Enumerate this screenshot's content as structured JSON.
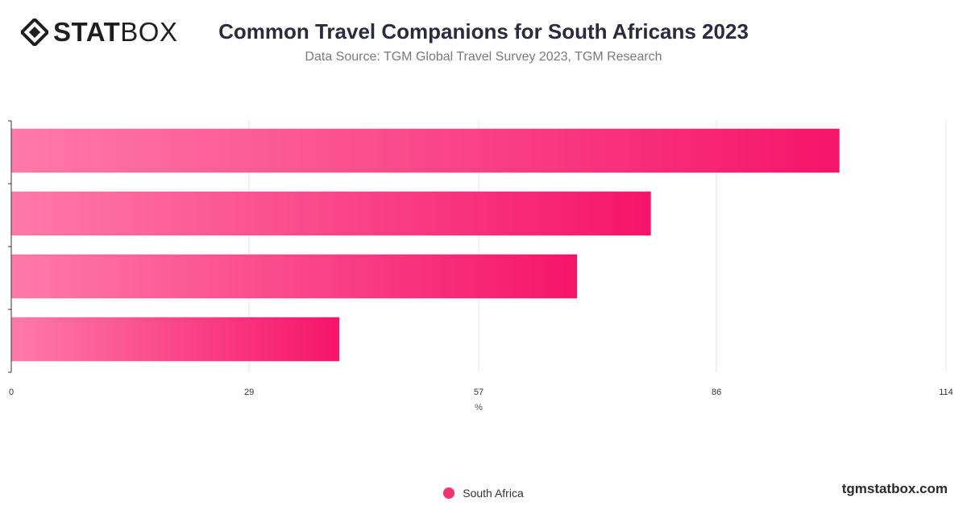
{
  "logo": {
    "text_bold": "STAT",
    "text_light": "BOX"
  },
  "header": {
    "title": "Common Travel Companions for South Africans 2023",
    "subtitle": "Data Source: TGM Global Travel Survey 2023, TGM Research"
  },
  "footer": {
    "site": "tgmstatbox.com"
  },
  "colors": {
    "bar_start": "#ff7aa8",
    "bar_end": "#f5156a",
    "grid": "#e3e3e3",
    "axis": "#333333",
    "legend_dot": "#f0346f"
  },
  "chart_data": {
    "type": "bar",
    "orientation": "horizontal",
    "title": "Common Travel Companions for South Africans 2023",
    "xlabel": "%",
    "xlim": [
      0,
      114
    ],
    "x_ticks": [
      "0",
      "29",
      "57",
      "86",
      "114"
    ],
    "x_tick_values": [
      0,
      29,
      57,
      86,
      114
    ],
    "grid": true,
    "legend_position": "bottom",
    "categories": [
      "",
      "",
      "",
      ""
    ],
    "series": [
      {
        "name": "South Africa",
        "values": [
          101,
          78,
          69,
          40
        ]
      }
    ]
  }
}
